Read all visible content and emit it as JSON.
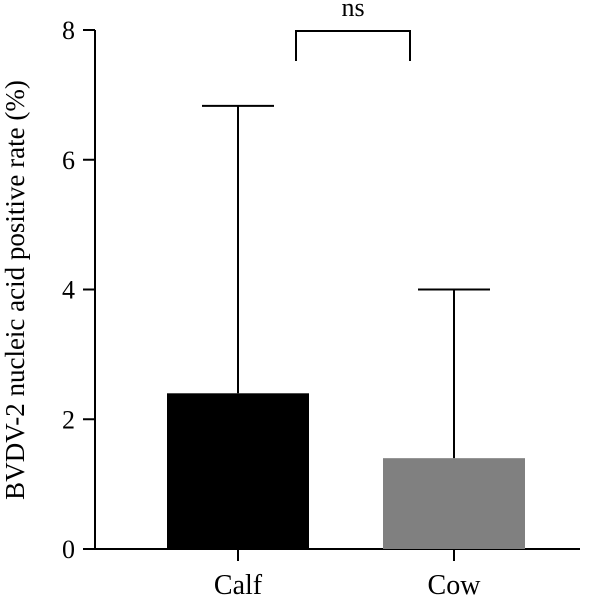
{
  "chart_data": {
    "type": "bar",
    "categories": [
      "Calf",
      "Cow"
    ],
    "values": [
      2.4,
      1.4
    ],
    "error_upper": [
      6.83,
      4.0
    ],
    "bar_colors": [
      "#000000",
      "#808080"
    ],
    "title": "",
    "xlabel": "",
    "ylabel": "BVDV-2 nucleic acid positive rate (%)",
    "ylim": [
      0,
      8
    ],
    "yticks": [
      "0",
      "2",
      "4",
      "6",
      "8"
    ],
    "grid": false,
    "legend": "none",
    "significance": {
      "label": "ns",
      "between": [
        "Calf",
        "Cow"
      ]
    }
  }
}
